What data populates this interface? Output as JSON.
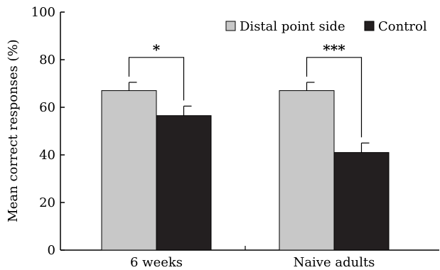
{
  "chart_data": {
    "type": "bar",
    "xlabel": "",
    "ylabel": "Mean correct responses (%)",
    "ylim": [
      0,
      100
    ],
    "yticks": [
      0,
      20,
      40,
      60,
      80,
      100
    ],
    "categories": [
      "6 weeks",
      "Naive adults"
    ],
    "series": [
      {
        "name": "Distal point side",
        "values": [
          67,
          67
        ],
        "errors": [
          3.5,
          3.5
        ],
        "color": "#c8c8c8"
      },
      {
        "name": "Control",
        "values": [
          56.5,
          41
        ],
        "errors": [
          4,
          4
        ],
        "color": "#231f20"
      }
    ],
    "significance": [
      {
        "category": "6 weeks",
        "label": "*"
      },
      {
        "category": "Naive adults",
        "label": "***"
      }
    ],
    "legend_position": "top-right",
    "grid": false
  }
}
